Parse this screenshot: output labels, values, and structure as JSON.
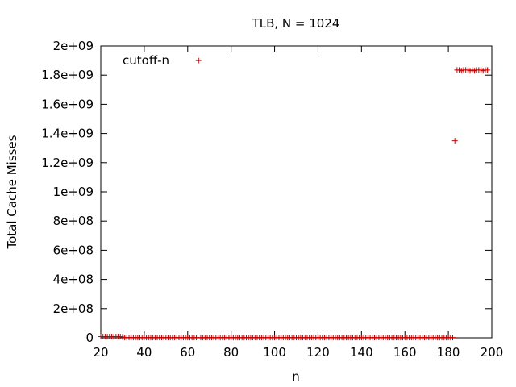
{
  "chart_data": {
    "type": "scatter",
    "title": "TLB, N = 1024",
    "xlabel": "n",
    "ylabel": "Total Cache Misses",
    "xlim": [
      20,
      200
    ],
    "ylim": [
      0,
      2000000000
    ],
    "xticks": [
      20,
      40,
      60,
      80,
      100,
      120,
      140,
      160,
      180,
      200
    ],
    "xtick_labels": [
      "20",
      "40",
      "60",
      "80",
      "100",
      "120",
      "140",
      "160",
      "180",
      "200"
    ],
    "yticks": [
      0,
      200000000,
      400000000,
      600000000,
      800000000,
      1000000000,
      1200000000,
      1400000000,
      1600000000,
      1800000000,
      2000000000
    ],
    "ytick_labels": [
      "0",
      "2e+08",
      "4e+08",
      "6e+08",
      "8e+08",
      "1e+09",
      "1.2e+09",
      "1.4e+09",
      "1.6e+09",
      "1.8e+09",
      "2e+09"
    ],
    "grid": false,
    "legend_position": "top-left",
    "marker": "+",
    "series": [
      {
        "name": "cutoff-n",
        "color": "#cc0000",
        "points": [
          [
            20,
            8000000
          ],
          [
            21,
            8000000
          ],
          [
            22,
            8000000
          ],
          [
            23,
            8000000
          ],
          [
            24,
            8000000
          ],
          [
            25,
            8000000
          ],
          [
            26,
            8000000
          ],
          [
            27,
            8000000
          ],
          [
            28,
            8000000
          ],
          [
            29,
            8000000
          ],
          [
            30,
            6000000
          ],
          [
            31,
            2000000
          ],
          [
            32,
            2000000
          ],
          [
            33,
            2000000
          ],
          [
            34,
            2000000
          ],
          [
            35,
            2000000
          ],
          [
            36,
            2000000
          ],
          [
            37,
            2000000
          ],
          [
            38,
            2000000
          ],
          [
            39,
            2000000
          ],
          [
            40,
            2000000
          ],
          [
            41,
            2000000
          ],
          [
            42,
            2000000
          ],
          [
            43,
            2000000
          ],
          [
            44,
            2000000
          ],
          [
            45,
            2000000
          ],
          [
            46,
            2000000
          ],
          [
            47,
            2000000
          ],
          [
            48,
            2000000
          ],
          [
            49,
            2000000
          ],
          [
            50,
            2000000
          ],
          [
            51,
            2000000
          ],
          [
            52,
            2000000
          ],
          [
            53,
            2000000
          ],
          [
            54,
            2000000
          ],
          [
            55,
            2000000
          ],
          [
            56,
            2000000
          ],
          [
            57,
            2000000
          ],
          [
            58,
            2000000
          ],
          [
            59,
            2000000
          ],
          [
            60,
            2000000
          ],
          [
            61,
            2000000
          ],
          [
            62,
            2000000
          ],
          [
            63,
            2000000
          ],
          [
            64,
            2000000
          ],
          [
            65,
            1900000000
          ],
          [
            66,
            2000000
          ],
          [
            67,
            2000000
          ],
          [
            68,
            2000000
          ],
          [
            69,
            2000000
          ],
          [
            70,
            2000000
          ],
          [
            71,
            2000000
          ],
          [
            72,
            2000000
          ],
          [
            73,
            2000000
          ],
          [
            74,
            2000000
          ],
          [
            75,
            2000000
          ],
          [
            76,
            2000000
          ],
          [
            77,
            2000000
          ],
          [
            78,
            2000000
          ],
          [
            79,
            2000000
          ],
          [
            80,
            2000000
          ],
          [
            81,
            2000000
          ],
          [
            82,
            2000000
          ],
          [
            83,
            2000000
          ],
          [
            84,
            2000000
          ],
          [
            85,
            2000000
          ],
          [
            86,
            2000000
          ],
          [
            87,
            2000000
          ],
          [
            88,
            2000000
          ],
          [
            89,
            2000000
          ],
          [
            90,
            2000000
          ],
          [
            91,
            2000000
          ],
          [
            92,
            2000000
          ],
          [
            93,
            2000000
          ],
          [
            94,
            2000000
          ],
          [
            95,
            2000000
          ],
          [
            96,
            2000000
          ],
          [
            97,
            2000000
          ],
          [
            98,
            2000000
          ],
          [
            99,
            2000000
          ],
          [
            100,
            2000000
          ],
          [
            101,
            2000000
          ],
          [
            102,
            2000000
          ],
          [
            103,
            2000000
          ],
          [
            104,
            2000000
          ],
          [
            105,
            2000000
          ],
          [
            106,
            2000000
          ],
          [
            107,
            2000000
          ],
          [
            108,
            2000000
          ],
          [
            109,
            2000000
          ],
          [
            110,
            2000000
          ],
          [
            111,
            2000000
          ],
          [
            112,
            2000000
          ],
          [
            113,
            2000000
          ],
          [
            114,
            2000000
          ],
          [
            115,
            2000000
          ],
          [
            116,
            2000000
          ],
          [
            117,
            2000000
          ],
          [
            118,
            2000000
          ],
          [
            119,
            2000000
          ],
          [
            120,
            2000000
          ],
          [
            121,
            2000000
          ],
          [
            122,
            2000000
          ],
          [
            123,
            2000000
          ],
          [
            124,
            2000000
          ],
          [
            125,
            2000000
          ],
          [
            126,
            2000000
          ],
          [
            127,
            2000000
          ],
          [
            128,
            2000000
          ],
          [
            129,
            2000000
          ],
          [
            130,
            2000000
          ],
          [
            131,
            2000000
          ],
          [
            132,
            2000000
          ],
          [
            133,
            2000000
          ],
          [
            134,
            2000000
          ],
          [
            135,
            2000000
          ],
          [
            136,
            2000000
          ],
          [
            137,
            2000000
          ],
          [
            138,
            2000000
          ],
          [
            139,
            2000000
          ],
          [
            140,
            2000000
          ],
          [
            141,
            2000000
          ],
          [
            142,
            2000000
          ],
          [
            143,
            2000000
          ],
          [
            144,
            2000000
          ],
          [
            145,
            2000000
          ],
          [
            146,
            2000000
          ],
          [
            147,
            2000000
          ],
          [
            148,
            2000000
          ],
          [
            149,
            2000000
          ],
          [
            150,
            2000000
          ],
          [
            151,
            2000000
          ],
          [
            152,
            2000000
          ],
          [
            153,
            2000000
          ],
          [
            154,
            2000000
          ],
          [
            155,
            2000000
          ],
          [
            156,
            2000000
          ],
          [
            157,
            2000000
          ],
          [
            158,
            2000000
          ],
          [
            159,
            2000000
          ],
          [
            160,
            2000000
          ],
          [
            161,
            2000000
          ],
          [
            162,
            2000000
          ],
          [
            163,
            2000000
          ],
          [
            164,
            2000000
          ],
          [
            165,
            2000000
          ],
          [
            166,
            2000000
          ],
          [
            167,
            2000000
          ],
          [
            168,
            2000000
          ],
          [
            169,
            2000000
          ],
          [
            170,
            2000000
          ],
          [
            171,
            2000000
          ],
          [
            172,
            2000000
          ],
          [
            173,
            2000000
          ],
          [
            174,
            2000000
          ],
          [
            175,
            2000000
          ],
          [
            176,
            2000000
          ],
          [
            177,
            2000000
          ],
          [
            178,
            2000000
          ],
          [
            179,
            2000000
          ],
          [
            180,
            2000000
          ],
          [
            181,
            2000000
          ],
          [
            182,
            2000000
          ],
          [
            183,
            1350000000
          ],
          [
            184,
            1835000000
          ],
          [
            185,
            1835000000
          ],
          [
            186,
            1830000000
          ],
          [
            187,
            1835000000
          ],
          [
            188,
            1835000000
          ],
          [
            189,
            1835000000
          ],
          [
            190,
            1830000000
          ],
          [
            191,
            1835000000
          ],
          [
            192,
            1830000000
          ],
          [
            193,
            1835000000
          ],
          [
            194,
            1835000000
          ],
          [
            195,
            1835000000
          ],
          [
            196,
            1830000000
          ],
          [
            197,
            1835000000
          ],
          [
            198,
            1835000000
          ]
        ]
      }
    ]
  }
}
